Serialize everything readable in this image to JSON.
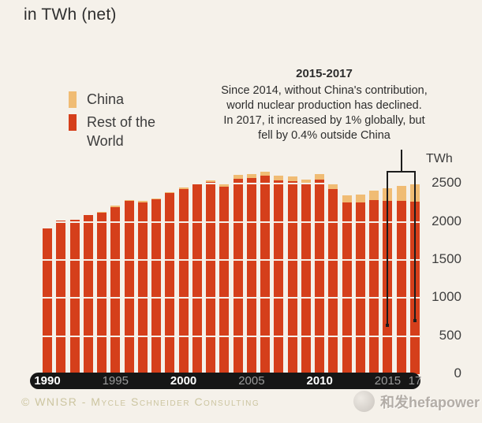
{
  "title": "in TWh (net)",
  "colors": {
    "china": "#f0bc74",
    "rest_of_world": "#d53f1b",
    "background": "#f5f1ea",
    "axis_pill": "#161616",
    "bracket": "#1c1c1c"
  },
  "legend": {
    "items": [
      {
        "label": "China",
        "color": "#f0bc74"
      },
      {
        "label": "Rest of the World",
        "color": "#d53f1b"
      }
    ]
  },
  "annotation": {
    "heading": "2015-2017",
    "lines": [
      "Since 2014, without China's contribution,",
      "world nuclear production has declined.",
      "In 2017, it increased by 1% globally, but",
      "fell by 0.4% outside China"
    ]
  },
  "axis": {
    "unit": "TWh",
    "yticks": [
      0,
      500,
      1000,
      1500,
      2000,
      2500
    ],
    "xticks": [
      {
        "label": "1990",
        "index": 0,
        "bold": true
      },
      {
        "label": "1995",
        "index": 5,
        "bold": false
      },
      {
        "label": "2000",
        "index": 10,
        "bold": true
      },
      {
        "label": "2005",
        "index": 15,
        "bold": false
      },
      {
        "label": "2010",
        "index": 20,
        "bold": true
      },
      {
        "label": "2015",
        "index": 25,
        "bold": false
      },
      {
        "label": "17",
        "index": 27,
        "bold": false
      }
    ]
  },
  "footer": "© WNISR - Mycle Schneider Consulting",
  "watermark": "和发hefapower",
  "chart_data": {
    "type": "bar",
    "stacked": true,
    "title": "in TWh (net)",
    "ylabel": "TWh",
    "ylim": [
      0,
      2750
    ],
    "grid": true,
    "legend_position": "top-left",
    "x": [
      1990,
      1991,
      1992,
      1993,
      1994,
      1995,
      1996,
      1997,
      1998,
      1999,
      2000,
      2001,
      2002,
      2003,
      2004,
      2005,
      2006,
      2007,
      2008,
      2009,
      2010,
      2011,
      2012,
      2013,
      2014,
      2015,
      2016,
      2017
    ],
    "series": [
      {
        "name": "China",
        "color": "#f0bc74",
        "values": [
          0,
          0,
          1,
          2,
          14,
          12,
          14,
          14,
          14,
          14,
          16,
          17,
          23,
          42,
          48,
          50,
          52,
          59,
          65,
          66,
          71,
          83,
          93,
          105,
          124,
          161,
          198,
          233
        ]
      },
      {
        "name": "Rest of the World",
        "color": "#d53f1b",
        "values": [
          1909,
          2014,
          2026,
          2087,
          2116,
          2198,
          2276,
          2257,
          2298,
          2376,
          2434,
          2500,
          2523,
          2462,
          2568,
          2576,
          2608,
          2549,
          2536,
          2492,
          2559,
          2435,
          2253,
          2254,
          2286,
          2280,
          2278,
          2270
        ]
      }
    ],
    "totals": [
      1909,
      2014,
      2027,
      2089,
      2130,
      2210,
      2290,
      2271,
      2312,
      2390,
      2450,
      2517,
      2546,
      2504,
      2616,
      2626,
      2660,
      2608,
      2601,
      2558,
      2630,
      2518,
      2346,
      2359,
      2410,
      2441,
      2476,
      2503
    ],
    "bracket_years": [
      2015,
      2017
    ]
  }
}
